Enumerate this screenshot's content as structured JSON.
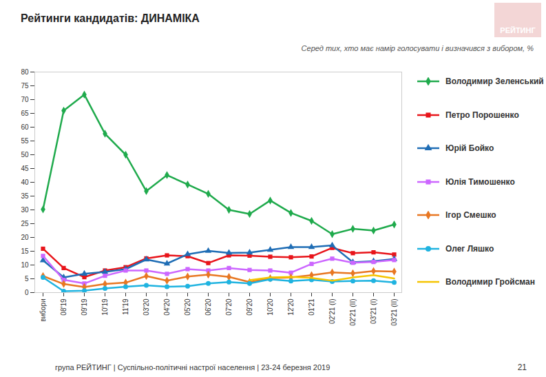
{
  "chart_data": {
    "type": "line",
    "title": "Рейтинги кандидатів: ДИНАМІКА",
    "subtitle": "Серед тих, хто має намір голосувати і визначився з вибором, %",
    "categories": [
      "вибори",
      "08'19",
      "09'19",
      "10'19",
      "11'19",
      "03'20",
      "04'20",
      "05'20",
      "06'20",
      "07'20",
      "09'20",
      "10'20",
      "12'20",
      "01'21",
      "02'21 (I)",
      "02'21 (II)",
      "03'21 (I)",
      "03'21 (II)"
    ],
    "series": [
      {
        "name": "Володимир Зеленський",
        "color": "#1faa4c",
        "marker": "diamond",
        "values": [
          30.2,
          66,
          71.8,
          57.6,
          50,
          36.8,
          42.6,
          39.2,
          35.8,
          30,
          28.5,
          33.4,
          28.9,
          26,
          21.2,
          23.1,
          22.5,
          24.7
        ]
      },
      {
        "name": "Петро Порошенко",
        "color": "#e8141a",
        "marker": "square",
        "values": [
          15.9,
          8.9,
          5.6,
          8,
          9.2,
          12.4,
          13.5,
          13.2,
          10.7,
          13.5,
          13.4,
          13,
          12.8,
          13.1,
          16.2,
          14.3,
          14.6,
          13.8
        ]
      },
      {
        "name": "Юрій Бойко",
        "color": "#1f6db5",
        "marker": "triangle",
        "values": [
          11.7,
          5.5,
          6.8,
          7.5,
          8.5,
          12,
          10.5,
          13.9,
          15.1,
          14.4,
          14.5,
          15.5,
          16.5,
          16.5,
          17.1,
          11,
          11.4,
          12.2
        ]
      },
      {
        "name": "Юлія Тимошенко",
        "color": "#cc66ff",
        "marker": "square",
        "values": [
          13.3,
          4.6,
          3.3,
          6.1,
          8,
          8,
          6.8,
          8.5,
          8,
          8.9,
          8.2,
          8,
          7.2,
          10.4,
          12.3,
          10.8,
          11.1,
          11.8
        ]
      },
      {
        "name": "Ігор Смешко",
        "color": "#e87722",
        "marker": "diamond",
        "values": [
          6,
          3.1,
          2,
          3.1,
          3.6,
          6,
          4.3,
          5.8,
          6.5,
          5.7,
          3.8,
          5.2,
          5.5,
          6.3,
          7.3,
          7,
          7.8,
          7.6
        ]
      },
      {
        "name": "Олег Ляшко",
        "color": "#1fb3e0",
        "marker": "circle",
        "values": [
          5.5,
          0.5,
          0.7,
          1.5,
          2.1,
          2.6,
          2.1,
          2.3,
          3.3,
          3.8,
          3.3,
          4.8,
          4.2,
          4.6,
          4,
          4.2,
          4.3,
          3.7
        ]
      },
      {
        "name": "Володимир Гройсман",
        "color": "#f5c400",
        "marker": "none",
        "values": [
          null,
          null,
          null,
          null,
          null,
          null,
          null,
          null,
          null,
          null,
          4.5,
          5.5,
          5.7,
          5.3,
          4.3,
          5.5,
          6.3,
          5.1
        ]
      }
    ],
    "ylim": [
      0,
      80
    ],
    "yticks": [
      0,
      5,
      10,
      15,
      20,
      25,
      30,
      35,
      40,
      45,
      50,
      55,
      60,
      65,
      70,
      75,
      80
    ],
    "grid": false,
    "legend": "right"
  },
  "logo": "РЕЙТИНГ",
  "footer": "група РЕЙТИНГ | Суспільно-політичні настрої населення | 23-24 березня 2019",
  "page_number": "21"
}
